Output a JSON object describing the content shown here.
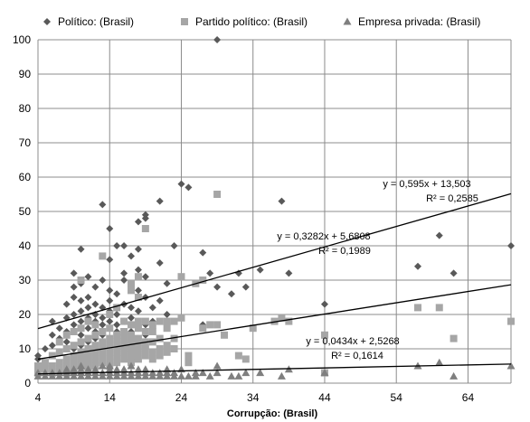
{
  "chart_data": {
    "type": "scatter",
    "xlabel": "Corrupção: (Brasil)",
    "ylabel": "",
    "xlim": [
      4,
      70
    ],
    "ylim": [
      0,
      100
    ],
    "x_ticks": [
      4,
      14,
      24,
      34,
      44,
      54,
      64
    ],
    "y_ticks": [
      0,
      10,
      20,
      30,
      40,
      50,
      60,
      70,
      80,
      90,
      100
    ],
    "grid": true,
    "legend_position": "top",
    "series": [
      {
        "name": "Político: (Brasil)",
        "marker": "diamond",
        "color": "#595959",
        "points": [
          [
            4,
            7
          ],
          [
            4,
            8
          ],
          [
            5,
            10
          ],
          [
            5,
            5
          ],
          [
            6,
            11
          ],
          [
            6,
            14
          ],
          [
            6,
            18
          ],
          [
            7,
            9
          ],
          [
            7,
            13
          ],
          [
            7,
            16
          ],
          [
            8,
            12
          ],
          [
            8,
            15
          ],
          [
            8,
            19
          ],
          [
            8,
            23
          ],
          [
            9,
            10
          ],
          [
            9,
            17
          ],
          [
            9,
            20
          ],
          [
            9,
            25
          ],
          [
            9,
            28
          ],
          [
            9,
            32
          ],
          [
            10,
            11
          ],
          [
            10,
            14
          ],
          [
            10,
            18
          ],
          [
            10,
            21
          ],
          [
            10,
            24
          ],
          [
            10,
            29
          ],
          [
            10,
            39
          ],
          [
            11,
            12
          ],
          [
            11,
            16
          ],
          [
            11,
            19
          ],
          [
            11,
            22
          ],
          [
            11,
            25
          ],
          [
            11,
            31
          ],
          [
            12,
            13
          ],
          [
            12,
            15
          ],
          [
            12,
            18
          ],
          [
            12,
            20
          ],
          [
            12,
            23
          ],
          [
            12,
            28
          ],
          [
            13,
            11
          ],
          [
            13,
            14
          ],
          [
            13,
            17
          ],
          [
            13,
            19
          ],
          [
            13,
            22
          ],
          [
            13,
            30
          ],
          [
            13,
            52
          ],
          [
            14,
            12
          ],
          [
            14,
            16
          ],
          [
            14,
            18
          ],
          [
            14,
            21
          ],
          [
            14,
            24
          ],
          [
            14,
            27
          ],
          [
            14,
            36
          ],
          [
            14,
            45
          ],
          [
            15,
            13
          ],
          [
            15,
            15
          ],
          [
            15,
            17
          ],
          [
            15,
            20
          ],
          [
            15,
            26
          ],
          [
            15,
            40
          ],
          [
            16,
            11
          ],
          [
            16,
            14
          ],
          [
            16,
            18
          ],
          [
            16,
            23
          ],
          [
            16,
            30
          ],
          [
            16,
            32
          ],
          [
            16,
            40
          ],
          [
            17,
            15
          ],
          [
            17,
            17
          ],
          [
            17,
            19
          ],
          [
            17,
            22
          ],
          [
            17,
            28
          ],
          [
            17,
            37
          ],
          [
            18,
            13
          ],
          [
            18,
            16
          ],
          [
            18,
            18
          ],
          [
            18,
            21
          ],
          [
            18,
            27
          ],
          [
            18,
            33
          ],
          [
            18,
            39
          ],
          [
            18,
            47
          ],
          [
            19,
            14
          ],
          [
            19,
            17
          ],
          [
            19,
            25
          ],
          [
            19,
            31
          ],
          [
            19,
            48
          ],
          [
            19,
            49
          ],
          [
            20,
            16
          ],
          [
            20,
            18
          ],
          [
            20,
            22
          ],
          [
            21,
            24
          ],
          [
            21,
            35
          ],
          [
            21,
            53
          ],
          [
            22,
            20
          ],
          [
            22,
            29
          ],
          [
            23,
            40
          ],
          [
            24,
            58
          ],
          [
            25,
            57
          ],
          [
            27,
            38
          ],
          [
            27,
            30
          ],
          [
            27,
            17
          ],
          [
            28,
            32
          ],
          [
            29,
            100
          ],
          [
            29,
            28
          ],
          [
            31,
            26
          ],
          [
            32,
            32
          ],
          [
            33,
            28
          ],
          [
            35,
            33
          ],
          [
            38,
            53
          ],
          [
            39,
            32
          ],
          [
            44,
            23
          ],
          [
            57,
            34
          ],
          [
            60,
            43
          ],
          [
            62,
            32
          ],
          [
            70,
            40
          ]
        ]
      },
      {
        "name": "Partido político: (Brasil)",
        "marker": "square",
        "color": "#a6a6a6",
        "points": [
          [
            4,
            3
          ],
          [
            4,
            5
          ],
          [
            5,
            4
          ],
          [
            5,
            6
          ],
          [
            6,
            3
          ],
          [
            6,
            5
          ],
          [
            6,
            8
          ],
          [
            7,
            4
          ],
          [
            7,
            6
          ],
          [
            7,
            9
          ],
          [
            7,
            12
          ],
          [
            8,
            3
          ],
          [
            8,
            5
          ],
          [
            8,
            7
          ],
          [
            8,
            10
          ],
          [
            8,
            14
          ],
          [
            9,
            4
          ],
          [
            9,
            6
          ],
          [
            9,
            8
          ],
          [
            9,
            11
          ],
          [
            9,
            15
          ],
          [
            10,
            5
          ],
          [
            10,
            7
          ],
          [
            10,
            9
          ],
          [
            10,
            12
          ],
          [
            10,
            16
          ],
          [
            10,
            30
          ],
          [
            11,
            4
          ],
          [
            11,
            6
          ],
          [
            11,
            8
          ],
          [
            11,
            10
          ],
          [
            11,
            13
          ],
          [
            11,
            18
          ],
          [
            12,
            5
          ],
          [
            12,
            7
          ],
          [
            12,
            9
          ],
          [
            12,
            11
          ],
          [
            12,
            14
          ],
          [
            12,
            17
          ],
          [
            13,
            6
          ],
          [
            13,
            8
          ],
          [
            13,
            10
          ],
          [
            13,
            12
          ],
          [
            13,
            15
          ],
          [
            13,
            37
          ],
          [
            14,
            5
          ],
          [
            14,
            7
          ],
          [
            14,
            9
          ],
          [
            14,
            11
          ],
          [
            14,
            13
          ],
          [
            14,
            16
          ],
          [
            14,
            20
          ],
          [
            15,
            6
          ],
          [
            15,
            8
          ],
          [
            15,
            10
          ],
          [
            15,
            12
          ],
          [
            15,
            14
          ],
          [
            15,
            22
          ],
          [
            16,
            7
          ],
          [
            16,
            9
          ],
          [
            16,
            11
          ],
          [
            16,
            13
          ],
          [
            16,
            15
          ],
          [
            16,
            18
          ],
          [
            17,
            6
          ],
          [
            17,
            8
          ],
          [
            17,
            10
          ],
          [
            17,
            12
          ],
          [
            17,
            14
          ],
          [
            17,
            17
          ],
          [
            17,
            27
          ],
          [
            17,
            29
          ],
          [
            18,
            7
          ],
          [
            18,
            9
          ],
          [
            18,
            11
          ],
          [
            18,
            13
          ],
          [
            18,
            16
          ],
          [
            18,
            18
          ],
          [
            18,
            25
          ],
          [
            18,
            31
          ],
          [
            19,
            8
          ],
          [
            19,
            10
          ],
          [
            19,
            12
          ],
          [
            19,
            15
          ],
          [
            19,
            18
          ],
          [
            19,
            45
          ],
          [
            20,
            7
          ],
          [
            20,
            9
          ],
          [
            20,
            12
          ],
          [
            20,
            15
          ],
          [
            20,
            17
          ],
          [
            21,
            8
          ],
          [
            21,
            10
          ],
          [
            21,
            13
          ],
          [
            21,
            18
          ],
          [
            22,
            9
          ],
          [
            22,
            11
          ],
          [
            22,
            16
          ],
          [
            22,
            18
          ],
          [
            23,
            10
          ],
          [
            23,
            13
          ],
          [
            23,
            18
          ],
          [
            24,
            19
          ],
          [
            24,
            31
          ],
          [
            25,
            6
          ],
          [
            25,
            8
          ],
          [
            26,
            29
          ],
          [
            27,
            16
          ],
          [
            27,
            30
          ],
          [
            28,
            17
          ],
          [
            29,
            55
          ],
          [
            29,
            17
          ],
          [
            30,
            14
          ],
          [
            32,
            8
          ],
          [
            33,
            7
          ],
          [
            34,
            16
          ],
          [
            37,
            18
          ],
          [
            38,
            19
          ],
          [
            39,
            18
          ],
          [
            44,
            14
          ],
          [
            44,
            3
          ],
          [
            57,
            22
          ],
          [
            60,
            22
          ],
          [
            62,
            13
          ],
          [
            70,
            18
          ]
        ]
      },
      {
        "name": "Empresa privada: (Brasil)",
        "marker": "triangle",
        "color": "#7f7f7f",
        "points": [
          [
            4,
            2
          ],
          [
            4,
            3
          ],
          [
            5,
            2
          ],
          [
            5,
            3
          ],
          [
            6,
            2
          ],
          [
            6,
            3
          ],
          [
            7,
            2
          ],
          [
            7,
            3
          ],
          [
            8,
            2
          ],
          [
            8,
            3
          ],
          [
            8,
            4
          ],
          [
            9,
            2
          ],
          [
            9,
            3
          ],
          [
            9,
            4
          ],
          [
            10,
            2
          ],
          [
            10,
            3
          ],
          [
            10,
            4
          ],
          [
            10,
            5
          ],
          [
            11,
            2
          ],
          [
            11,
            3
          ],
          [
            11,
            4
          ],
          [
            12,
            2
          ],
          [
            12,
            3
          ],
          [
            12,
            4
          ],
          [
            13,
            2
          ],
          [
            13,
            3
          ],
          [
            13,
            5
          ],
          [
            14,
            2
          ],
          [
            14,
            3
          ],
          [
            14,
            4
          ],
          [
            14,
            5
          ],
          [
            15,
            2
          ],
          [
            15,
            3
          ],
          [
            15,
            4
          ],
          [
            16,
            2
          ],
          [
            16,
            3
          ],
          [
            16,
            4
          ],
          [
            17,
            2
          ],
          [
            17,
            3
          ],
          [
            17,
            5
          ],
          [
            18,
            2
          ],
          [
            18,
            3
          ],
          [
            18,
            4
          ],
          [
            19,
            2
          ],
          [
            19,
            3
          ],
          [
            19,
            4
          ],
          [
            20,
            2
          ],
          [
            20,
            3
          ],
          [
            21,
            2
          ],
          [
            21,
            3
          ],
          [
            22,
            2
          ],
          [
            22,
            3
          ],
          [
            22,
            4
          ],
          [
            23,
            2
          ],
          [
            23,
            3
          ],
          [
            24,
            2
          ],
          [
            24,
            4
          ],
          [
            25,
            2
          ],
          [
            26,
            2
          ],
          [
            26,
            3
          ],
          [
            27,
            3
          ],
          [
            28,
            2
          ],
          [
            29,
            3
          ],
          [
            29,
            5
          ],
          [
            31,
            2
          ],
          [
            32,
            2
          ],
          [
            33,
            3
          ],
          [
            35,
            3
          ],
          [
            38,
            2
          ],
          [
            39,
            4
          ],
          [
            44,
            3
          ],
          [
            57,
            5
          ],
          [
            60,
            6
          ],
          [
            62,
            2
          ],
          [
            70,
            5
          ]
        ]
      }
    ],
    "trendlines": [
      {
        "series": "Político: (Brasil)",
        "slope": 0.595,
        "intercept": 13.503,
        "equation": "y = 0,595x + 13,503",
        "r2": "R² = 0,2585"
      },
      {
        "series": "Partido político: (Brasil)",
        "slope": 0.3282,
        "intercept": 5.6808,
        "equation": "y = 0,3282x + 5,6808",
        "r2": "R² = 0,1989"
      },
      {
        "series": "Empresa privada: (Brasil)",
        "slope": 0.0434,
        "intercept": 2.5268,
        "equation": "y = 0,0434x + 2,5268",
        "r2": "R² = 0,1614"
      }
    ]
  }
}
